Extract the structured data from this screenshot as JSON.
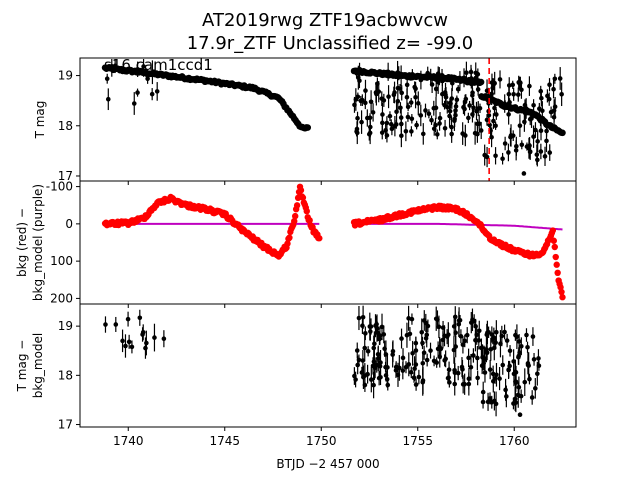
{
  "title_line1": "AT2019rwg  ZTF19acbwvcw",
  "title_line2": "17.9r_ZTF Unclassified z= -99.0",
  "annotation": "s16 cam1ccd1",
  "xlabel": "BTJD −2 457 000",
  "colors": {
    "mag": "#000000",
    "bkg": "#ff0000",
    "bkg_model": "#bf00bf",
    "marker_line": "#ff0000"
  },
  "chart_data": [
    {
      "type": "scatter",
      "name": "panel-top",
      "ylabel": "T mag",
      "ylim": [
        19.35,
        16.9
      ],
      "yticks": [
        17,
        18,
        19
      ],
      "xlim": [
        1737.5,
        1763.2
      ],
      "vline_x": 1758.7,
      "segments": [
        {
          "x0": 1738.8,
          "x1": 1749.3,
          "knots": [
            [
              1738.8,
              19.15
            ],
            [
              1741,
              19.05
            ],
            [
              1744,
              18.9
            ],
            [
              1746.5,
              18.75
            ],
            [
              1747.8,
              18.55
            ],
            [
              1748.6,
              18.15
            ],
            [
              1749.0,
              17.95
            ],
            [
              1749.3,
              17.95
            ]
          ]
        },
        {
          "x0": 1751.7,
          "x1": 1758.3,
          "knots": [
            [
              1751.7,
              19.1
            ],
            [
              1754,
              19.0
            ],
            [
              1756.5,
              18.95
            ],
            [
              1758.3,
              18.85
            ]
          ]
        },
        {
          "x0": 1758.3,
          "x1": 1762.5,
          "knots": [
            [
              1758.3,
              18.6
            ],
            [
              1759.5,
              18.4
            ],
            [
              1761.0,
              18.25
            ],
            [
              1761.8,
              18.0
            ],
            [
              1762.5,
              17.85
            ]
          ]
        }
      ],
      "scatter_x_ranges": [
        [
          1738.8,
          1742.2
        ],
        [
          1751.7,
          1762.5
        ]
      ],
      "scatter_y_range": [
        17.0,
        19.25
      ]
    },
    {
      "type": "scatter",
      "name": "panel-middle",
      "ylabel": "bkg (red) −\nbkg_model (purple)",
      "ylim": [
        -115,
        215
      ],
      "yticks": [
        -100,
        0,
        100,
        200
      ],
      "xlim": [
        1737.5,
        1763.2
      ],
      "bkg_knots": [
        [
          1738.8,
          0
        ],
        [
          1740.0,
          -2
        ],
        [
          1740.8,
          -15
        ],
        [
          1741.5,
          -55
        ],
        [
          1742.2,
          -68
        ],
        [
          1743.0,
          -50
        ],
        [
          1744.0,
          -40
        ],
        [
          1745.0,
          -25
        ],
        [
          1746.0,
          20
        ],
        [
          1747.0,
          60
        ],
        [
          1747.8,
          85
        ],
        [
          1748.2,
          60
        ],
        [
          1748.6,
          -10
        ],
        [
          1748.9,
          -95
        ],
        [
          1749.3,
          -20
        ],
        [
          1749.6,
          20
        ],
        [
          1749.9,
          40
        ]
      ],
      "bkg_knots_2": [
        [
          1751.7,
          0
        ],
        [
          1753.0,
          -10
        ],
        [
          1754.5,
          -30
        ],
        [
          1756.0,
          -45
        ],
        [
          1757.0,
          -40
        ],
        [
          1758.0,
          -10
        ],
        [
          1758.8,
          40
        ],
        [
          1759.5,
          60
        ],
        [
          1760.2,
          75
        ],
        [
          1761.0,
          85
        ],
        [
          1761.5,
          75
        ],
        [
          1762.0,
          20
        ],
        [
          1762.3,
          150
        ],
        [
          1762.5,
          200
        ]
      ],
      "model_knots": [
        [
          1738.8,
          0
        ],
        [
          1745.0,
          0
        ],
        [
          1749.9,
          0
        ]
      ],
      "model_knots_2": [
        [
          1751.7,
          0
        ],
        [
          1756.0,
          0
        ],
        [
          1760.0,
          5
        ],
        [
          1762.5,
          15
        ]
      ]
    },
    {
      "type": "scatter",
      "name": "panel-bottom",
      "ylabel": "T mag −\nbkg_model",
      "ylim": [
        19.45,
        16.95
      ],
      "yticks": [
        17,
        18,
        19
      ],
      "xlim": [
        1737.5,
        1763.2
      ],
      "xticks": [
        1740,
        1745,
        1750,
        1755,
        1760
      ],
      "points_x_ranges": [
        [
          1738.8,
          1742.0
        ],
        [
          1751.7,
          1761.3
        ]
      ],
      "points_y_range": [
        17.3,
        19.4
      ]
    }
  ]
}
